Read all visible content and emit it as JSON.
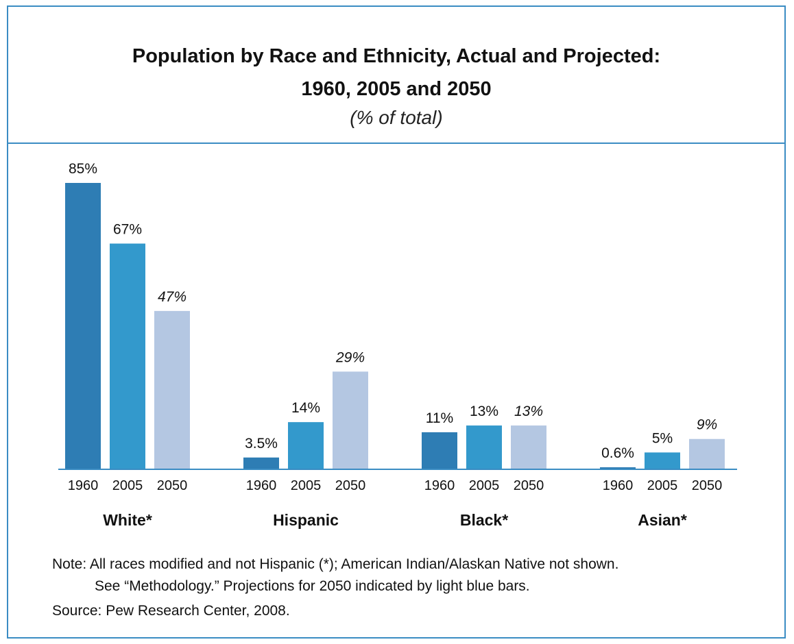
{
  "title_line1": "Population by Race and Ethnicity, Actual and Projected:",
  "title_line2": "1960, 2005 and 2050",
  "subtitle": "(% of total)",
  "note_line1": "Note:  All races modified and not Hispanic (*); American Indian/Alaskan Native not shown.",
  "note_line2": "See “Methodology.” Projections for 2050 indicated by light blue bars.",
  "source": "Source: Pew Research Center, 2008.",
  "colors": {
    "1960": "#2e7db4",
    "2005": "#3399cc",
    "2050": "#b4c7e2",
    "axis": "#3a8cc3"
  },
  "chart_data": {
    "type": "bar",
    "title": "Population by Race and Ethnicity, Actual and Projected: 1960, 2005 and 2050",
    "subtitle": "(% of total)",
    "years": [
      "1960",
      "2005",
      "2050"
    ],
    "categories": [
      "White*",
      "Hispanic",
      "Black*",
      "Asian*"
    ],
    "series": [
      {
        "name": "1960",
        "values": [
          85,
          3.5,
          11,
          0.6
        ],
        "labels": [
          "85%",
          "3.5%",
          "11%",
          "0.6%"
        ]
      },
      {
        "name": "2005",
        "values": [
          67,
          14,
          13,
          5
        ],
        "labels": [
          "67%",
          "14%",
          "13%",
          "5%"
        ]
      },
      {
        "name": "2050",
        "values": [
          47,
          29,
          13,
          9
        ],
        "labels": [
          "47%",
          "29%",
          "13%",
          "9%"
        ],
        "projected": true
      }
    ],
    "ylim": [
      0,
      100
    ],
    "grid": false,
    "legend": "none"
  }
}
